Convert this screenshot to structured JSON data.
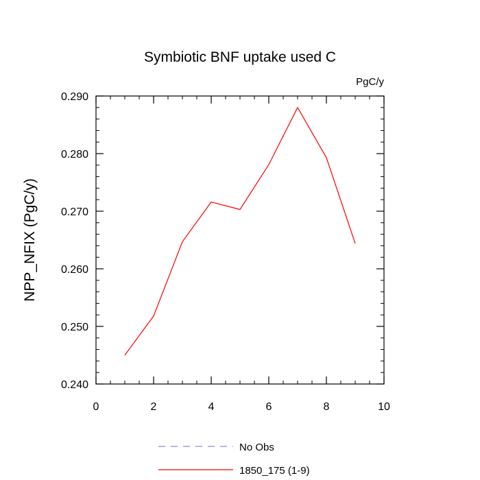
{
  "chart_data": {
    "type": "line",
    "title": "Symbiotic BNF uptake used C",
    "units_label": "PgC/y",
    "ylabel": "NPP_NFIX  (PgC/y)",
    "xlabel": "",
    "xlim": [
      0,
      10
    ],
    "ylim": [
      0.24,
      0.29
    ],
    "xticks": [
      "0",
      "2",
      "4",
      "6",
      "8",
      "10"
    ],
    "yticks": [
      "0.240",
      "0.250",
      "0.260",
      "0.270",
      "0.280",
      "0.290"
    ],
    "grid": false,
    "legend_position": "bottom",
    "series": [
      {
        "name": "1850_175 (1-9)",
        "color": "#ff0000",
        "style": "solid",
        "x": [
          1,
          2,
          3,
          4,
          5,
          6,
          7,
          8,
          9
        ],
        "y": [
          0.245,
          0.2518,
          0.2647,
          0.2716,
          0.2703,
          0.2781,
          0.288,
          0.2793,
          0.2644
        ]
      }
    ],
    "legend": [
      {
        "label": "No Obs",
        "color": "#8888ee",
        "style": "dashed"
      },
      {
        "label": "1850_175 (1-9)",
        "color": "#ff0000",
        "style": "solid"
      }
    ]
  }
}
